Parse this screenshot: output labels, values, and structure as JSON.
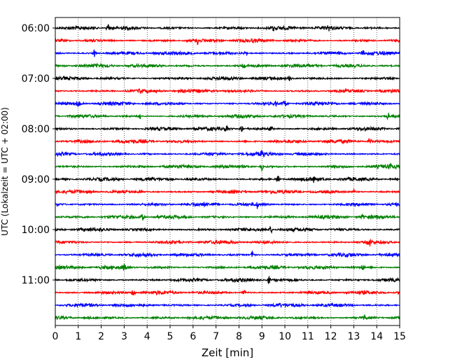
{
  "chart_data": {
    "type": "line",
    "subtype": "helicorder-seismogram",
    "title": "",
    "xlabel": "Zeit  [min]",
    "ylabel": "UTC (Lokalzeit = UTC + 02:00)",
    "xlim": [
      0,
      15
    ],
    "x_ticks": [
      "0",
      "1",
      "2",
      "3",
      "4",
      "5",
      "6",
      "7",
      "8",
      "9",
      "10",
      "11",
      "12",
      "13",
      "14",
      "15"
    ],
    "y_tick_labels": [
      "06:00",
      "07:00",
      "08:00",
      "09:00",
      "10:00",
      "11:00"
    ],
    "vertical_grid": "dotted, every 1 min",
    "trace_count": 24,
    "trace_interval_minutes": 15,
    "first_trace_start": "06:00",
    "trace_colors": [
      "#000000",
      "#ff0000",
      "#0000ff",
      "#008000"
    ],
    "trace_start_minute": [
      0,
      0,
      0,
      0,
      0,
      0,
      0,
      0,
      0,
      0,
      0,
      0,
      0,
      0,
      0,
      0,
      0,
      0,
      0,
      0,
      0,
      0,
      0,
      0
    ],
    "trace_end_minute": [
      15,
      15,
      15,
      15,
      15,
      15,
      15,
      15,
      15,
      15,
      15,
      15,
      15,
      15,
      15,
      15,
      15,
      15,
      15,
      15,
      15,
      15,
      15,
      15
    ],
    "spikes_minutes": [
      [
        2.3,
        9.5,
        11.9
      ],
      [
        6.2
      ],
      [
        1.7,
        8.3,
        13.4
      ],
      [
        8.2
      ],
      [
        10.2
      ],
      [
        3.7
      ],
      [
        1.0,
        9.6,
        10.0
      ],
      [
        3.7,
        14.5
      ],
      [
        7.5,
        8.1,
        9.4
      ],
      [
        13.7
      ],
      [
        9.0
      ],
      [
        9.0,
        14.6
      ],
      [
        9.7,
        11.2
      ],
      [
        3.7,
        13.0
      ],
      [
        8.8
      ],
      [
        3.8,
        13.4
      ],
      [
        9.4
      ],
      [
        13.7
      ],
      [
        8.6
      ],
      [
        3.0,
        13.4
      ],
      [
        9.3
      ],
      [
        3.4,
        8.2
      ],
      [
        9.7
      ],
      [
        13.5
      ]
    ]
  }
}
